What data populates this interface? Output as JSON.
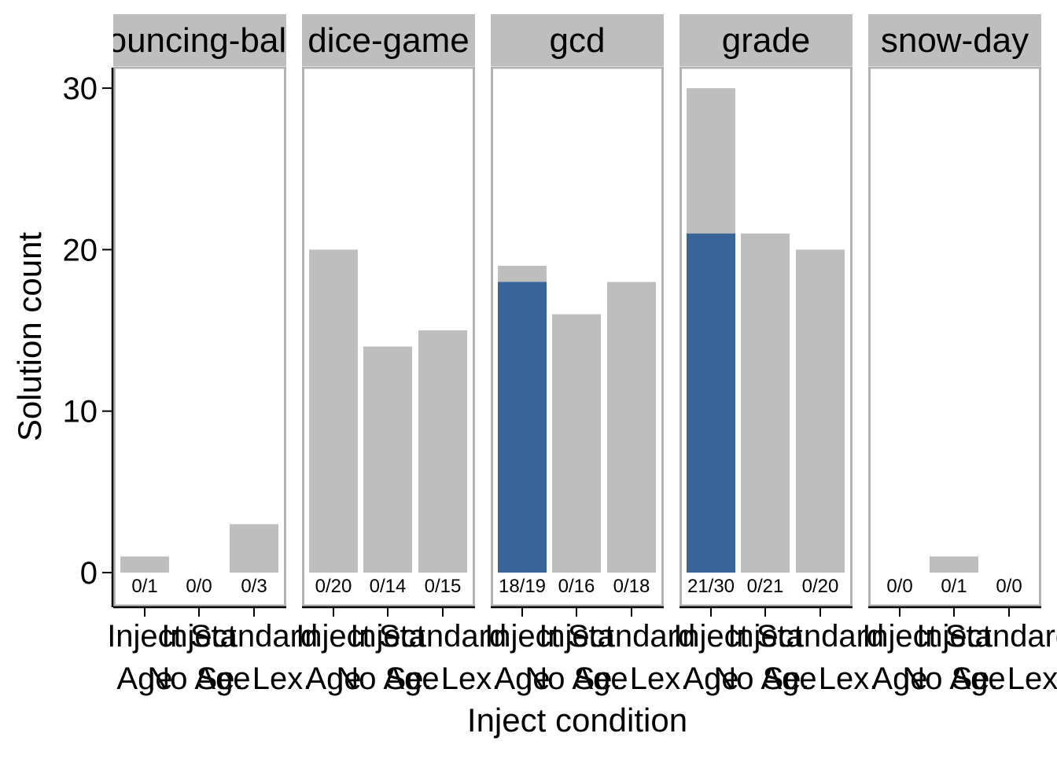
{
  "chart_data": {
    "type": "bar",
    "layout": "facet_wrap",
    "xlabel": "Inject condition",
    "ylabel": "Solution count",
    "ylim": [
      0,
      31.5
    ],
    "yticks": [
      0,
      10,
      20,
      30
    ],
    "categories": [
      {
        "line1": "Inject",
        "line2": "Age"
      },
      {
        "line1": "Inject",
        "line2": "No Age"
      },
      {
        "line1": "Standard",
        "line2": "Se. Lex."
      }
    ],
    "colors": {
      "total": "#bebebe",
      "solved": "#386499",
      "strip": "#bebebe",
      "panel_border": "#b3b3b3"
    },
    "series": [
      {
        "role": "total",
        "color": "#bebebe"
      },
      {
        "role": "solved",
        "color": "#386499"
      }
    ],
    "facets": [
      {
        "title": "bouncing-balls",
        "bars": [
          {
            "total": 1,
            "solved": 0,
            "label": "0/1"
          },
          {
            "total": 0,
            "solved": 0,
            "label": "0/0"
          },
          {
            "total": 3,
            "solved": 0,
            "label": "0/3"
          }
        ]
      },
      {
        "title": "dice-game",
        "bars": [
          {
            "total": 20,
            "solved": 0,
            "label": "0/20"
          },
          {
            "total": 14,
            "solved": 0,
            "label": "0/14"
          },
          {
            "total": 15,
            "solved": 0,
            "label": "0/15"
          }
        ]
      },
      {
        "title": "gcd",
        "bars": [
          {
            "total": 19,
            "solved": 18,
            "label": "18/19"
          },
          {
            "total": 16,
            "solved": 0,
            "label": "0/16"
          },
          {
            "total": 18,
            "solved": 0,
            "label": "0/18"
          }
        ]
      },
      {
        "title": "grade",
        "bars": [
          {
            "total": 30,
            "solved": 21,
            "label": "21/30"
          },
          {
            "total": 21,
            "solved": 0,
            "label": "0/21"
          },
          {
            "total": 20,
            "solved": 0,
            "label": "0/20"
          }
        ]
      },
      {
        "title": "snow-day",
        "bars": [
          {
            "total": 0,
            "solved": 0,
            "label": "0/0"
          },
          {
            "total": 1,
            "solved": 0,
            "label": "0/1"
          },
          {
            "total": 0,
            "solved": 0,
            "label": "0/0"
          }
        ]
      }
    ]
  }
}
